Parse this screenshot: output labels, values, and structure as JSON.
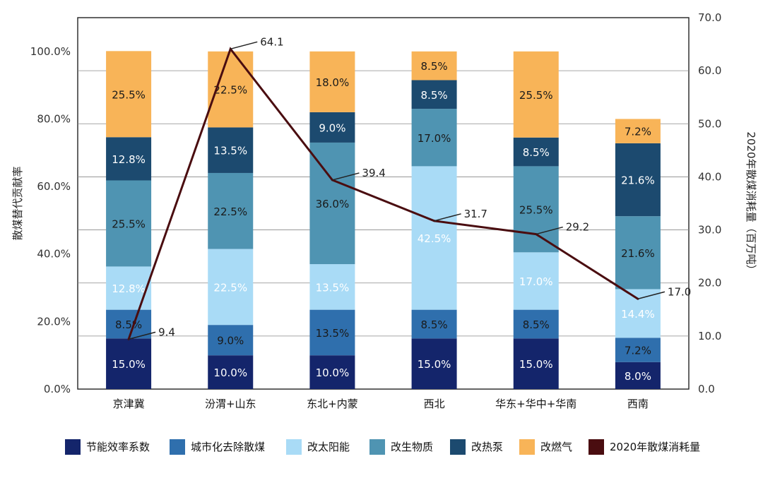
{
  "chart_data": {
    "type": "bar",
    "stacked": true,
    "title": "",
    "ylabel": "散煤替代贡献率",
    "y2label": "2020年散煤消耗量（百万吨）",
    "ylim": [
      0,
      1.1
    ],
    "y2lim": [
      0,
      70
    ],
    "yticks": [
      "0.0%",
      "20.0%",
      "40.0%",
      "60.0%",
      "80.0%",
      "100.0%"
    ],
    "y2ticks": [
      "0.0",
      "10.0",
      "20.0",
      "30.0",
      "40.0",
      "50.0",
      "60.0",
      "70.0"
    ],
    "grid": true,
    "legend_position": "bottom",
    "categories": [
      "京津冀",
      "汾渭+山东",
      "东北+内蒙",
      "西北",
      "华东+华中+华南",
      "西南"
    ],
    "series": [
      {
        "name": "节能效率系数",
        "color": "#14256b",
        "label_color": "#ffffff",
        "values": [
          15.0,
          10.0,
          10.0,
          15.0,
          15.0,
          8.0
        ],
        "labels": [
          "15.0%",
          "10.0%",
          "10.0%",
          "15.0%",
          "15.0%",
          "8.0%"
        ]
      },
      {
        "name": "城市化去除散煤",
        "color": "#2f6fad",
        "label_color": "#1a1a1a",
        "values": [
          8.5,
          9.0,
          13.5,
          8.5,
          8.5,
          7.2
        ],
        "labels": [
          "8.5%",
          "9.0%",
          "13.5%",
          "8.5%",
          "8.5%",
          "7.2%"
        ]
      },
      {
        "name": "改太阳能",
        "color": "#a9dbf6",
        "label_color": "#ffffff",
        "values": [
          12.8,
          22.5,
          13.5,
          42.5,
          17.0,
          14.4
        ],
        "labels": [
          "12.8%",
          "22.5%",
          "13.5%",
          "42.5%",
          "17.0%",
          "14.4%"
        ]
      },
      {
        "name": "改生物质",
        "color": "#4f94b2",
        "label_color": "#1a1a1a",
        "values": [
          25.5,
          22.5,
          36.0,
          17.0,
          25.5,
          21.6
        ],
        "labels": [
          "25.5%",
          "22.5%",
          "36.0%",
          "17.0%",
          "25.5%",
          "21.6%"
        ]
      },
      {
        "name": "改热泵",
        "color": "#1c4a6f",
        "label_color": "#ffffff",
        "values": [
          12.8,
          13.5,
          9.0,
          8.5,
          8.5,
          21.6
        ],
        "labels": [
          "12.8%",
          "13.5%",
          "9.0%",
          "8.5%",
          "8.5%",
          "21.6%"
        ]
      },
      {
        "name": "改燃气",
        "color": "#f8b458",
        "label_color": "#1a1a1a",
        "values": [
          25.5,
          22.5,
          18.0,
          8.5,
          25.5,
          7.2
        ],
        "labels": [
          "25.5%",
          "22.5%",
          "18.0%",
          "8.5%",
          "25.5%",
          "7.2%"
        ]
      }
    ],
    "line_series": {
      "name": "2020年散煤消耗量",
      "color": "#4a0d10",
      "axis": "right",
      "values": [
        9.4,
        64.1,
        39.4,
        31.7,
        29.2,
        17.0
      ],
      "labels": [
        "9.4",
        "64.1",
        "39.4",
        "31.7",
        "29.2",
        "17.0"
      ]
    }
  }
}
